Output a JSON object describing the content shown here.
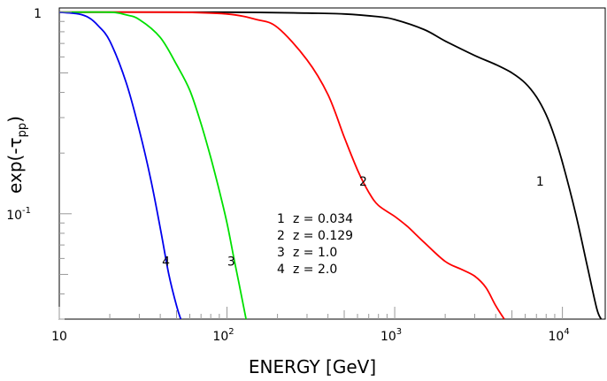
{
  "chart_data": {
    "type": "line",
    "xscale": "log",
    "yscale": "log",
    "xlim": [
      10,
      18000
    ],
    "ylim": [
      0.03,
      1.05
    ],
    "xlabel": "ENERGY [GeV]",
    "ylabel": "exp(-τ",
    "ylabel_sub": "pp",
    "ylabel_close": ")",
    "x_ticks": [
      {
        "value": 10,
        "base": "10",
        "exp": ""
      },
      {
        "value": 100,
        "base": "10",
        "exp": "2"
      },
      {
        "value": 1000,
        "base": "10",
        "exp": "3"
      },
      {
        "value": 10000,
        "base": "10",
        "exp": "4"
      }
    ],
    "y_ticks": [
      {
        "value": 1,
        "base": "1",
        "exp": ""
      },
      {
        "value": 0.1,
        "base": "10",
        "exp": "-1"
      }
    ],
    "legend": [
      {
        "num": "1",
        "text": "z = 0.034"
      },
      {
        "num": "2",
        "text": "z = 0.129"
      },
      {
        "num": "3",
        "text": "z = 1.0"
      },
      {
        "num": "4",
        "text": "z = 2.0"
      }
    ],
    "series": [
      {
        "label": "1",
        "color": "#000000",
        "label_at": [
          6800,
          0.145
        ],
        "x": [
          10,
          100,
          300,
          500,
          800,
          1000,
          1500,
          2000,
          3000,
          4000,
          5000,
          6000,
          7000,
          8000,
          9000,
          10000,
          12000,
          14000,
          16000,
          17000
        ],
        "y": [
          1.0,
          1.0,
          0.99,
          0.98,
          0.95,
          0.92,
          0.82,
          0.72,
          0.61,
          0.55,
          0.5,
          0.445,
          0.38,
          0.31,
          0.24,
          0.18,
          0.1,
          0.056,
          0.034,
          0.03
        ]
      },
      {
        "label": "2",
        "color": "#ff0000",
        "label_at": [
          600,
          0.145
        ],
        "x": [
          10,
          50,
          100,
          150,
          200,
          300,
          400,
          500,
          600,
          700,
          800,
          1000,
          1200,
          1500,
          2000,
          2500,
          3000,
          3500,
          4000,
          4500
        ],
        "y": [
          1.0,
          1.0,
          0.98,
          0.92,
          0.84,
          0.58,
          0.39,
          0.24,
          0.165,
          0.128,
          0.11,
          0.097,
          0.086,
          0.072,
          0.058,
          0.053,
          0.049,
          0.043,
          0.035,
          0.03
        ]
      },
      {
        "label": "3",
        "color": "#00e000",
        "label_at": [
          98,
          0.058
        ],
        "x": [
          10,
          20,
          25,
          30,
          40,
          50,
          60,
          70,
          80,
          90,
          100,
          110,
          120,
          130
        ],
        "y": [
          1.0,
          1.0,
          0.97,
          0.92,
          0.75,
          0.55,
          0.41,
          0.28,
          0.19,
          0.13,
          0.09,
          0.06,
          0.042,
          0.03
        ]
      },
      {
        "label": "4",
        "color": "#0000ee",
        "label_at": [
          40,
          0.058
        ],
        "x": [
          10,
          13,
          15,
          17,
          20,
          25,
          30,
          35,
          40,
          45,
          50,
          53
        ],
        "y": [
          1.0,
          0.98,
          0.94,
          0.86,
          0.72,
          0.45,
          0.26,
          0.15,
          0.085,
          0.05,
          0.035,
          0.03
        ]
      }
    ]
  }
}
